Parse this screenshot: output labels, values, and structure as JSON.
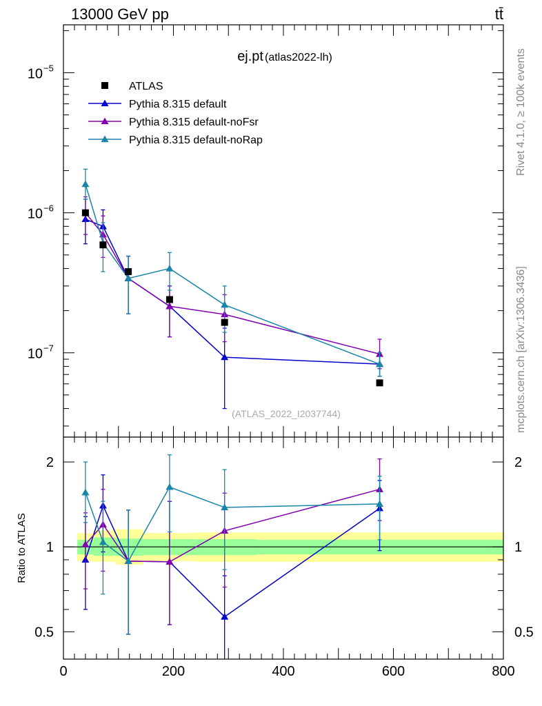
{
  "header": {
    "energy_label": "13000 GeV pp",
    "process_label": "tt̄"
  },
  "side": {
    "rivet_label": "Rivet 4.1.0, ≥ 100k events",
    "mcplots_label": "mcplots.cern.ch [arXiv:1306.3436]"
  },
  "chart_data": [
    {
      "type": "scatter",
      "panel": "main",
      "title": "ej.pt",
      "subtitle": "(atlas2022-lh)",
      "watermark": "(ATLAS_2022_I2037744)",
      "yscale": "log",
      "xlim": [
        0,
        800
      ],
      "ylim": [
        2.5e-08,
        2.2e-05
      ],
      "ytick_labels": [
        {
          "value": 1e-05,
          "label": "10",
          "exp": "−5"
        },
        {
          "value": 1e-06,
          "label": "10",
          "exp": "−6"
        },
        {
          "value": 1e-07,
          "label": "10",
          "exp": "−7"
        }
      ],
      "legend_position": "top-left",
      "series": [
        {
          "name": "ATLAS",
          "color": "#000000",
          "marker": "square",
          "x": [
            40,
            72,
            118,
            193,
            293,
            575
          ],
          "y": [
            1e-06,
            5.9e-07,
            3.8e-07,
            2.4e-07,
            1.65e-07,
            6.1e-08
          ],
          "xerr": [
            0,
            0,
            0,
            0,
            0,
            0
          ],
          "ylow": [
            1e-06,
            5.9e-07,
            3.8e-07,
            2.4e-07,
            1.65e-07,
            6.1e-08
          ],
          "yhigh": [
            1e-06,
            5.9e-07,
            3.8e-07,
            2.4e-07,
            1.65e-07,
            6.1e-08
          ]
        },
        {
          "name": "Pythia 8.315 default",
          "color": "#0000cc",
          "marker": "triangle",
          "x": [
            40,
            72,
            118,
            193,
            293,
            575
          ],
          "y": [
            9e-07,
            8e-07,
            3.4e-07,
            2.15e-07,
            9.3e-08,
            8.3e-08
          ],
          "ylow": [
            6e-07,
            5.8e-07,
            1.9e-07,
            1.3e-07,
            4e-08,
            6.8e-08
          ],
          "yhigh": [
            1.25e-06,
            1.05e-06,
            4.9e-07,
            3e-07,
            1.5e-07,
            1e-07
          ]
        },
        {
          "name": "Pythia 8.315 default-noFsr",
          "color": "#8000b0",
          "marker": "triangle",
          "x": [
            40,
            72,
            118,
            193,
            293,
            575
          ],
          "y": [
            1e-06,
            7e-07,
            3.4e-07,
            2.15e-07,
            1.88e-07,
            9.8e-08
          ],
          "ylow": [
            7e-07,
            4.8e-07,
            1.9e-07,
            1.3e-07,
            1.2e-07,
            7.7e-08
          ],
          "yhigh": [
            1.3e-06,
            9.5e-07,
            4.9e-07,
            3e-07,
            2.6e-07,
            1.25e-07
          ]
        },
        {
          "name": "Pythia 8.315 default-noRap",
          "color": "#1a85a8",
          "marker": "triangle",
          "x": [
            40,
            72,
            118,
            193,
            293,
            575
          ],
          "y": [
            1.6e-06,
            6.1e-07,
            3.4e-07,
            4e-07,
            2.2e-07,
            8.3e-08
          ],
          "ylow": [
            1.25e-06,
            3.8e-07,
            1.9e-07,
            2.8e-07,
            1.4e-07,
            6.8e-08
          ],
          "yhigh": [
            2.05e-06,
            8.5e-07,
            4.9e-07,
            5.2e-07,
            3e-07,
            1e-07
          ]
        }
      ]
    },
    {
      "type": "scatter",
      "panel": "ratio",
      "ylabel": "Ratio to ATLAS",
      "yscale": "log",
      "xlim": [
        0,
        800
      ],
      "ylim": [
        0.4,
        2.45
      ],
      "xticks": [
        0,
        200,
        400,
        600,
        800
      ],
      "xtick_labels": [
        "0",
        "200",
        "400",
        "600",
        "800"
      ],
      "yticks": [
        0.5,
        1,
        2
      ],
      "ytick_labels": [
        "0.5",
        "1",
        "2"
      ],
      "reference_line": 1,
      "uncertainty_bands": [
        {
          "xmin": 25,
          "xmax": 55,
          "inner": [
            0.94,
            1.06
          ],
          "outer": [
            0.89,
            1.12
          ]
        },
        {
          "xmin": 55,
          "xmax": 95,
          "inner": [
            0.93,
            1.08
          ],
          "outer": [
            0.885,
            1.145
          ]
        },
        {
          "xmin": 95,
          "xmax": 145,
          "inner": [
            0.93,
            1.07
          ],
          "outer": [
            0.865,
            1.155
          ]
        },
        {
          "xmin": 145,
          "xmax": 240,
          "inner": [
            0.935,
            1.065
          ],
          "outer": [
            0.89,
            1.12
          ]
        },
        {
          "xmin": 240,
          "xmax": 350,
          "inner": [
            0.935,
            1.065
          ],
          "outer": [
            0.885,
            1.125
          ]
        },
        {
          "xmin": 350,
          "xmax": 800,
          "inner": [
            0.94,
            1.06
          ],
          "outer": [
            0.885,
            1.125
          ]
        }
      ],
      "series": [
        {
          "name": "Pythia 8.315 default",
          "color": "#0000cc",
          "x": [
            40,
            72,
            118,
            193,
            293,
            575
          ],
          "y": [
            0.9,
            1.4,
            0.89,
            0.885,
            0.565,
            1.37
          ],
          "ylow": [
            0.6,
            0.96,
            0.49,
            0.53,
            0.33,
            0.97
          ],
          "yhigh": [
            1.28,
            1.8,
            1.35,
            1.45,
            0.79,
            1.72
          ]
        },
        {
          "name": "Pythia 8.315 default-noFsr",
          "color": "#8000b0",
          "x": [
            40,
            72,
            118,
            193,
            293,
            575
          ],
          "y": [
            1.02,
            1.2,
            0.89,
            0.885,
            1.14,
            1.6
          ],
          "ylow": [
            0.71,
            0.82,
            0.49,
            0.53,
            0.72,
            1.24
          ],
          "yhigh": [
            1.32,
            1.6,
            1.35,
            1.45,
            1.55,
            2.05
          ]
        },
        {
          "name": "Pythia 8.315 default-noRap",
          "color": "#1a85a8",
          "x": [
            40,
            72,
            118,
            193,
            293,
            575
          ],
          "y": [
            1.56,
            1.04,
            0.89,
            1.63,
            1.38,
            1.42
          ],
          "ylow": [
            1.22,
            0.68,
            0.49,
            1.13,
            0.83,
            1.06
          ],
          "yhigh": [
            2.0,
            1.45,
            1.35,
            2.12,
            1.88,
            1.78
          ]
        }
      ]
    }
  ]
}
